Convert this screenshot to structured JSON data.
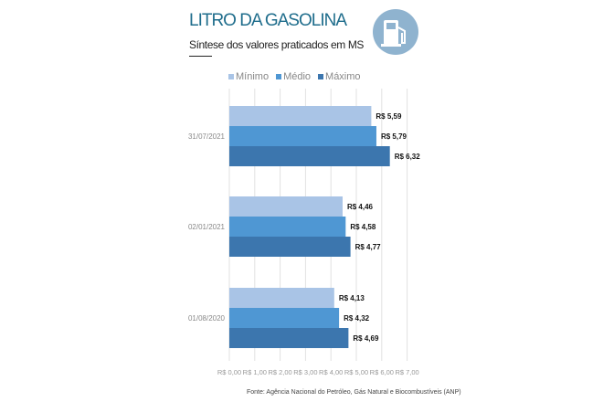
{
  "header": {
    "title": "LITRO DA GASOLINA",
    "subtitle": "Síntese dos valores praticados em MS",
    "icon": "gas-pump-icon",
    "icon_color": "#8fb3cf"
  },
  "source": "Fonte: Agência Nacional do Petróleo, Gás Natural e Biocombustíveis (ANP)",
  "chart_data": {
    "type": "bar",
    "orientation": "horizontal",
    "categories": [
      "31/07/2021",
      "02/01/2021",
      "01/08/2020"
    ],
    "series": [
      {
        "name": "Mínimo",
        "color": "#a9c4e6",
        "values": [
          5.59,
          4.46,
          4.13
        ],
        "labels": [
          "R$ 5,59",
          "R$ 4,46",
          "R$ 4,13"
        ]
      },
      {
        "name": "Médio",
        "color": "#4f97d3",
        "values": [
          5.79,
          4.58,
          4.32
        ],
        "labels": [
          "R$ 5,79",
          "R$ 4,58",
          "R$ 4,32"
        ]
      },
      {
        "name": "Máximo",
        "color": "#3c76ae",
        "values": [
          6.32,
          4.77,
          4.69
        ],
        "labels": [
          "R$ 6,32",
          "R$ 4,77",
          "R$ 4,69"
        ]
      }
    ],
    "xlim": [
      0,
      7
    ],
    "xticks": [
      "R$ 0,00",
      "R$ 1,00",
      "R$ 2,00",
      "R$ 3,00",
      "R$ 4,00",
      "R$ 5,00",
      "R$ 6,00",
      "R$ 7,00"
    ],
    "grid": true,
    "legend": "top"
  }
}
